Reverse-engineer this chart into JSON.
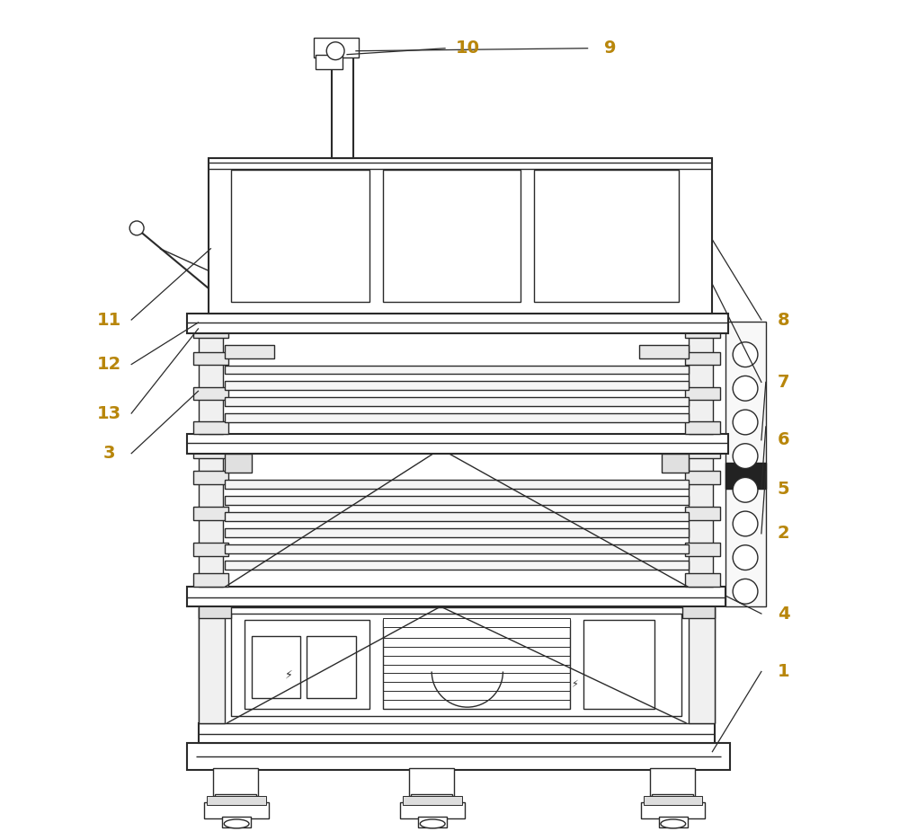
{
  "bg_color": "#ffffff",
  "line_color": "#2a2a2a",
  "label_color": "#b8860b",
  "fig_width": 10.0,
  "fig_height": 9.35
}
